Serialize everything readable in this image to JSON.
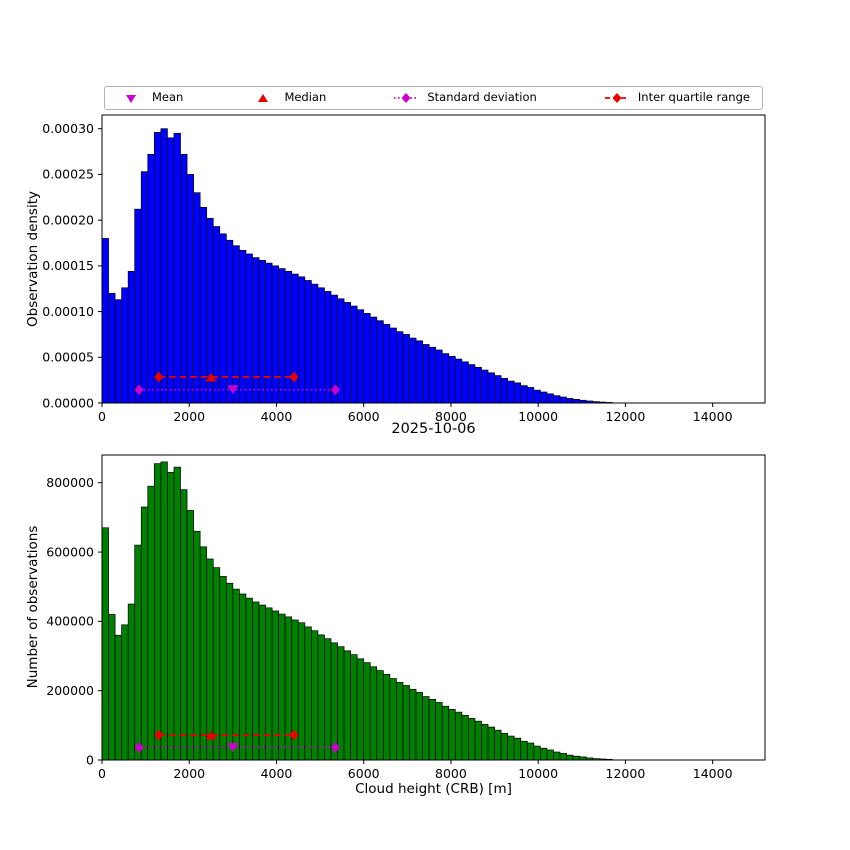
{
  "figure": {
    "title": "2025-10-06",
    "xlabel": "Cloud height (CRB) [m]",
    "ylabel_top": "Observation density",
    "ylabel_bottom": "Number of observations"
  },
  "colors": {
    "hist_top": "#0000ff",
    "hist_bottom": "#008000",
    "bar_edge": "#000000",
    "mean_std": "#cc00cc",
    "median_iqr": "#e60000"
  },
  "legend": {
    "items": [
      {
        "label": "Mean",
        "marker": "triangle-down",
        "color": "#cc00cc"
      },
      {
        "label": "Median",
        "marker": "triangle-up",
        "color": "#e60000"
      },
      {
        "label": "Standard deviation",
        "marker": "diamond-dotted-line",
        "color": "#cc00cc"
      },
      {
        "label": "Inter quartile range",
        "marker": "diamond-dashed-line",
        "color": "#e60000"
      }
    ]
  },
  "chart_data": [
    {
      "type": "bar",
      "subtype": "histogram",
      "title": "2025-10-06",
      "ylabel": "Observation density",
      "xlabel": "",
      "bin_start": 0,
      "bin_width": 150,
      "xlim": [
        0,
        15200
      ],
      "ylim": [
        0,
        0.000315
      ],
      "xticks": [
        0,
        2000,
        4000,
        6000,
        8000,
        10000,
        12000,
        14000
      ],
      "xtick_labels": [
        "0",
        "2000",
        "4000",
        "6000",
        "8000",
        "10000",
        "12000",
        "14000"
      ],
      "yticks": [
        0,
        5e-05,
        0.0001,
        0.00015,
        0.0002,
        0.00025,
        0.0003
      ],
      "ytick_labels": [
        "0.00000",
        "0.00005",
        "0.00010",
        "0.00015",
        "0.00020",
        "0.00025",
        "0.00030"
      ],
      "values": [
        0.00018,
        0.00012,
        0.000113,
        0.000126,
        0.000144,
        0.000212,
        0.000253,
        0.000272,
        0.000296,
        0.0003,
        0.00029,
        0.000295,
        0.000272,
        0.00025,
        0.00023,
        0.000214,
        0.000202,
        0.000193,
        0.000185,
        0.000178,
        0.000172,
        0.000167,
        0.000163,
        0.000159,
        0.000156,
        0.000153,
        0.00015,
        0.000147,
        0.000144,
        0.000141,
        0.000138,
        0.000134,
        0.00013,
        0.000126,
        0.000122,
        0.000118,
        0.000114,
        0.00011,
        0.000106,
        0.000102,
        9.8e-05,
        9.4e-05,
        9e-05,
        8.6e-05,
        8.2e-05,
        7.8e-05,
        7.5e-05,
        7.1e-05,
        6.8e-05,
        6.4e-05,
        6.1e-05,
        5.8e-05,
        5.4e-05,
        5.1e-05,
        4.8e-05,
        4.5e-05,
        4.2e-05,
        3.9e-05,
        3.6e-05,
        3.3e-05,
        3e-05,
        2.7e-05,
        2.4e-05,
        2.2e-05,
        1.9e-05,
        1.7e-05,
        1.4e-05,
        1.2e-05,
        1e-05,
        8e-06,
        6.5e-06,
        5e-06,
        4e-06,
        3e-06,
        2.2e-06,
        1.5e-06,
        1e-06,
        6e-07
      ],
      "markers": {
        "mean": {
          "x": 3000,
          "y": 1.45e-05
        },
        "median": {
          "x": 2500,
          "y": 2.85e-05
        },
        "std": {
          "x1": 850,
          "x2": 5350,
          "y": 1.45e-05
        },
        "iqr": {
          "x1": 1300,
          "x2": 4400,
          "y": 2.85e-05
        }
      }
    },
    {
      "type": "bar",
      "subtype": "histogram",
      "ylabel": "Number of observations",
      "xlabel": "Cloud height (CRB) [m]",
      "bin_start": 0,
      "bin_width": 150,
      "xlim": [
        0,
        15200
      ],
      "ylim": [
        0,
        880000
      ],
      "xticks": [
        0,
        2000,
        4000,
        6000,
        8000,
        10000,
        12000,
        14000
      ],
      "xtick_labels": [
        "0",
        "2000",
        "4000",
        "6000",
        "8000",
        "10000",
        "12000",
        "14000"
      ],
      "yticks": [
        0,
        200000,
        400000,
        600000,
        800000
      ],
      "ytick_labels": [
        "0",
        "200000",
        "400000",
        "600000",
        "800000"
      ],
      "values": [
        670000,
        420000,
        360000,
        390000,
        450000,
        620000,
        730000,
        790000,
        855000,
        860000,
        830000,
        845000,
        780000,
        720000,
        660000,
        615000,
        580000,
        555000,
        530000,
        510000,
        493000,
        479000,
        467000,
        456000,
        447000,
        439000,
        430000,
        421000,
        413000,
        404000,
        396000,
        384000,
        373000,
        361000,
        350000,
        338000,
        327000,
        315000,
        304000,
        292000,
        281000,
        269000,
        258000,
        247000,
        235000,
        224000,
        215000,
        204000,
        195000,
        183000,
        175000,
        166000,
        155000,
        146000,
        138000,
        129000,
        120000,
        112000,
        103000,
        95000,
        86000,
        77000,
        69000,
        63000,
        54000,
        49000,
        40000,
        34000,
        29000,
        23000,
        19000,
        14000,
        11000,
        9000,
        6000,
        4000,
        3000,
        2000
      ],
      "markers": {
        "mean": {
          "x": 3000,
          "y": 36000
        },
        "median": {
          "x": 2500,
          "y": 72000
        },
        "std": {
          "x1": 850,
          "x2": 5350,
          "y": 36000
        },
        "iqr": {
          "x1": 1300,
          "x2": 4400,
          "y": 72000
        }
      }
    }
  ]
}
